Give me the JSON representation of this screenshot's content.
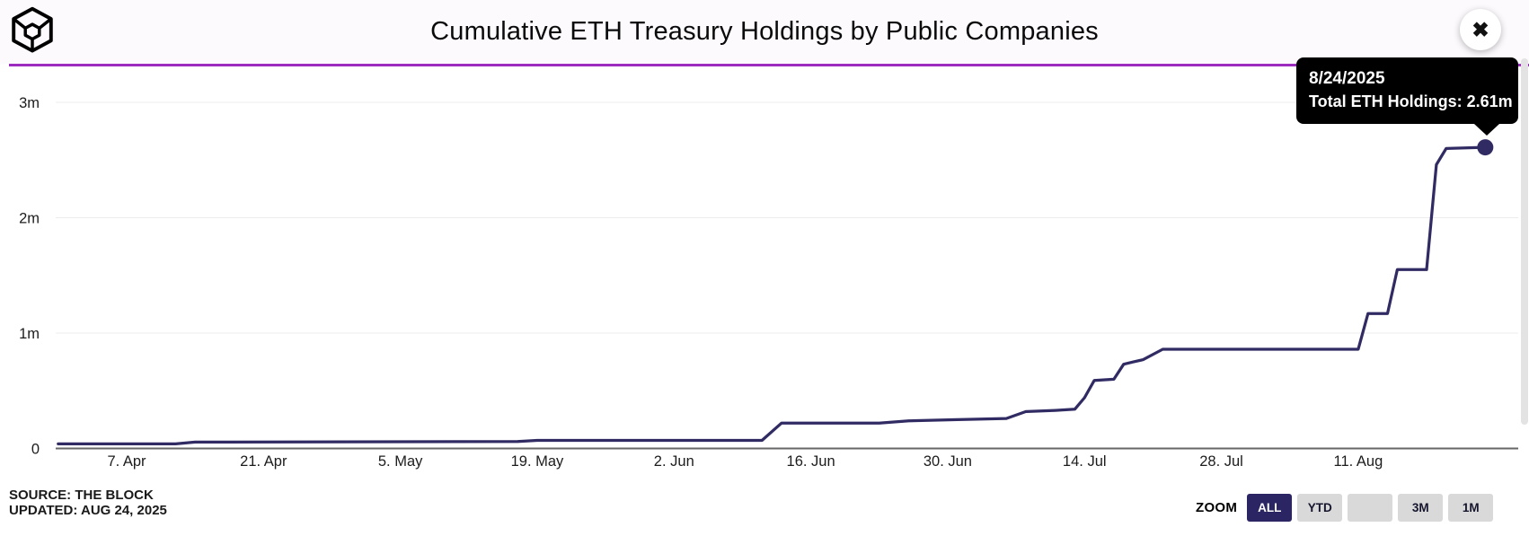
{
  "header": {
    "title": "Cumulative ETH Treasury Holdings by Public Companies",
    "close_icon": "✖"
  },
  "tooltip": {
    "date": "8/24/2025",
    "label": "Total ETH Holdings: 2.61m"
  },
  "chart_data": {
    "type": "line",
    "title": "Cumulative ETH Treasury Holdings by Public Companies",
    "series_name": "Total ETH Holdings",
    "line_color": "#312b63",
    "grid": true,
    "legend": "none",
    "ylim_m": [
      0,
      3.3
    ],
    "y_unit": "millions of ETH",
    "y_ticks": [
      {
        "label": "0",
        "value": 0
      },
      {
        "label": "1m",
        "value": 1
      },
      {
        "label": "2m",
        "value": 2
      },
      {
        "label": "3m",
        "value": 3
      }
    ],
    "x_ticks": [
      {
        "label": "7. Apr",
        "date": "2025-04-07"
      },
      {
        "label": "21. Apr",
        "date": "2025-04-21"
      },
      {
        "label": "5. May",
        "date": "2025-05-05"
      },
      {
        "label": "19. May",
        "date": "2025-05-19"
      },
      {
        "label": "2. Jun",
        "date": "2025-06-02"
      },
      {
        "label": "16. Jun",
        "date": "2025-06-16"
      },
      {
        "label": "30. Jun",
        "date": "2025-06-30"
      },
      {
        "label": "14. Jul",
        "date": "2025-07-14"
      },
      {
        "label": "28. Jul",
        "date": "2025-07-28"
      },
      {
        "label": "11. Aug",
        "date": "2025-08-11"
      }
    ],
    "points": [
      [
        "2025-03-31",
        0.04
      ],
      [
        "2025-04-12",
        0.04
      ],
      [
        "2025-04-14",
        0.055
      ],
      [
        "2025-05-17",
        0.06
      ],
      [
        "2025-05-19",
        0.07
      ],
      [
        "2025-06-11",
        0.07
      ],
      [
        "2025-06-13",
        0.22
      ],
      [
        "2025-06-23",
        0.22
      ],
      [
        "2025-06-26",
        0.24
      ],
      [
        "2025-07-01",
        0.25
      ],
      [
        "2025-07-06",
        0.26
      ],
      [
        "2025-07-08",
        0.32
      ],
      [
        "2025-07-11",
        0.33
      ],
      [
        "2025-07-13",
        0.34
      ],
      [
        "2025-07-14",
        0.44
      ],
      [
        "2025-07-15",
        0.59
      ],
      [
        "2025-07-17",
        0.6
      ],
      [
        "2025-07-18",
        0.73
      ],
      [
        "2025-07-19",
        0.75
      ],
      [
        "2025-07-20",
        0.77
      ],
      [
        "2025-07-22",
        0.86
      ],
      [
        "2025-08-11",
        0.86
      ],
      [
        "2025-08-12",
        1.17
      ],
      [
        "2025-08-14",
        1.17
      ],
      [
        "2025-08-15",
        1.55
      ],
      [
        "2025-08-18",
        1.55
      ],
      [
        "2025-08-19",
        2.46
      ],
      [
        "2025-08-20",
        2.6
      ],
      [
        "2025-08-24",
        2.61
      ]
    ],
    "last_point": {
      "date": "8/24/2025",
      "value_m": 2.61
    }
  },
  "footer": {
    "source_line1": "SOURCE: THE BLOCK",
    "source_line2": "UPDATED: AUG 24, 2025",
    "zoom_label": "ZOOM",
    "zoom_buttons": [
      {
        "label": "ALL",
        "active": true
      },
      {
        "label": "YTD",
        "active": false
      },
      {
        "label": "",
        "active": false
      },
      {
        "label": "3M",
        "active": false
      },
      {
        "label": "1M",
        "active": false
      }
    ]
  },
  "colors": {
    "accent_line": "#9c2bbf",
    "series": "#312b63",
    "tooltip_bg": "#000000",
    "active_button_bg": "#2b2563",
    "active_button_text": "#ffffff",
    "inactive_button_bg": "#d9d9d9",
    "grid_line": "#ececec",
    "axis_line": "#666666"
  }
}
